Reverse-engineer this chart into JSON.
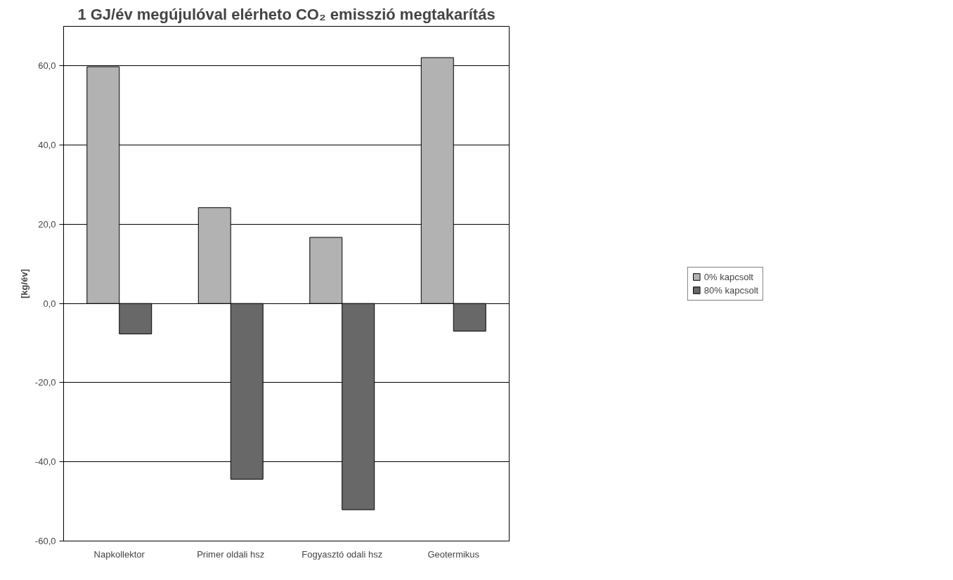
{
  "chart_data": {
    "type": "bar",
    "title": "1 GJ/év megújulóval elérheto CO₂ emisszió megtakarítás",
    "ylabel": "[kg/év]",
    "categories": [
      "Napkollektor",
      "Primer oldali hsz",
      "Fogyasztó odali hsz",
      "Geotermikus"
    ],
    "series": [
      {
        "name": "0% kapcsolt",
        "color": "#b2b2b2",
        "values": [
          59.8,
          24.2,
          16.7,
          62.1
        ]
      },
      {
        "name": "80% kapcsolt",
        "color": "#686868",
        "values": [
          -7.7,
          -44.4,
          -52.1,
          -7.0
        ]
      }
    ],
    "ylim": [
      -60,
      70
    ],
    "yticks": [
      {
        "value": -60,
        "label": "-60,0"
      },
      {
        "value": -40,
        "label": "-40,0"
      },
      {
        "value": -20,
        "label": "-20,0"
      },
      {
        "value": 0,
        "label": "0,0"
      },
      {
        "value": 20,
        "label": "20,0"
      },
      {
        "value": 40,
        "label": "40,0"
      },
      {
        "value": 60,
        "label": "60,0"
      }
    ],
    "grid": "y",
    "legend": "right"
  }
}
